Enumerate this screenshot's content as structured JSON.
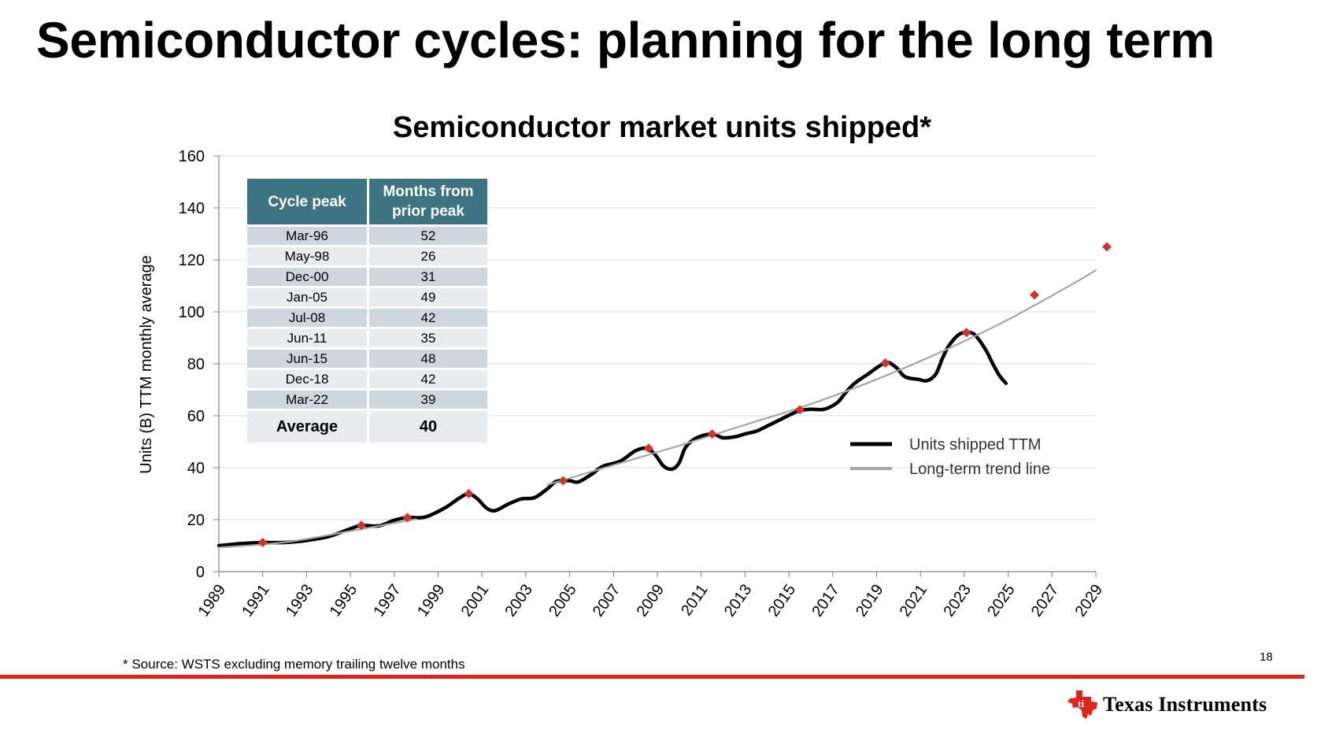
{
  "slide": {
    "title": "Semiconductor cycles: planning for the long term",
    "footnote": "* Source: WSTS excluding memory trailing twelve months",
    "page_number": "18"
  },
  "brand": {
    "company": "Texas Instruments",
    "logo_icon": "texas-instruments-logo-icon",
    "accent_color": "#e2231a"
  },
  "table": {
    "headers": [
      "Cycle peak",
      "Months from prior peak"
    ],
    "rows": [
      {
        "peak": "Mar-96",
        "months": "52"
      },
      {
        "peak": "May-98",
        "months": "26"
      },
      {
        "peak": "Dec-00",
        "months": "31"
      },
      {
        "peak": "Jan-05",
        "months": "49"
      },
      {
        "peak": "Jul-08",
        "months": "42"
      },
      {
        "peak": "Jun-11",
        "months": "35"
      },
      {
        "peak": "Jun-15",
        "months": "48"
      },
      {
        "peak": "Dec-18",
        "months": "42"
      },
      {
        "peak": "Mar-22",
        "months": "39"
      }
    ],
    "average_label": "Average",
    "average_value": "40"
  },
  "chart_data": {
    "type": "line",
    "title": "Semiconductor market units shipped*",
    "xlabel": "",
    "ylabel": "Units (B) TTM monthly average",
    "xlim": [
      1989,
      2029
    ],
    "ylim": [
      0,
      160
    ],
    "yticks": [
      0,
      20,
      40,
      60,
      80,
      100,
      120,
      140,
      160
    ],
    "xticks": [
      1989,
      1991,
      1993,
      1995,
      1997,
      1999,
      2001,
      2003,
      2005,
      2007,
      2009,
      2011,
      2013,
      2015,
      2017,
      2019,
      2021,
      2023,
      2025,
      2027,
      2029
    ],
    "grid": true,
    "legend_position": "right",
    "series": [
      {
        "name": "Units shipped TTM",
        "color": "#000000",
        "points": [
          [
            1989,
            10
          ],
          [
            1990,
            10.8
          ],
          [
            1991,
            11.2
          ],
          [
            1992,
            11.2
          ],
          [
            1993,
            12
          ],
          [
            1994,
            13.5
          ],
          [
            1995,
            16.5
          ],
          [
            1995.5,
            17.8
          ],
          [
            1996.3,
            17.6
          ],
          [
            1997,
            19.8
          ],
          [
            1997.6,
            20.8
          ],
          [
            1998.4,
            21
          ],
          [
            1999.3,
            24.5
          ],
          [
            2000,
            28.5
          ],
          [
            2000.4,
            30
          ],
          [
            2000.8,
            28
          ],
          [
            2001.2,
            24.5
          ],
          [
            2001.6,
            23.5
          ],
          [
            2002.2,
            26
          ],
          [
            2002.8,
            28
          ],
          [
            2003.4,
            28.5
          ],
          [
            2004,
            32
          ],
          [
            2004.4,
            34.8
          ],
          [
            2005,
            35
          ],
          [
            2005.4,
            34.5
          ],
          [
            2006,
            37.5
          ],
          [
            2006.5,
            40.5
          ],
          [
            2007.3,
            42.5
          ],
          [
            2008,
            46.5
          ],
          [
            2008.5,
            47.5
          ],
          [
            2008.9,
            45
          ],
          [
            2009.3,
            40.5
          ],
          [
            2009.7,
            39.5
          ],
          [
            2010,
            42
          ],
          [
            2010.3,
            48
          ],
          [
            2010.8,
            51.5
          ],
          [
            2011.5,
            53
          ],
          [
            2012,
            51.5
          ],
          [
            2012.6,
            52
          ],
          [
            2013,
            53
          ],
          [
            2013.5,
            54
          ],
          [
            2014,
            56
          ],
          [
            2014.6,
            58.5
          ],
          [
            2015.2,
            61
          ],
          [
            2015.5,
            62
          ],
          [
            2016,
            62.5
          ],
          [
            2016.6,
            62.5
          ],
          [
            2017.2,
            65
          ],
          [
            2017.6,
            69
          ],
          [
            2018,
            72.5
          ],
          [
            2018.6,
            76
          ],
          [
            2019.1,
            79
          ],
          [
            2019.5,
            80.5
          ],
          [
            2019.9,
            78.5
          ],
          [
            2020.3,
            75
          ],
          [
            2020.9,
            74
          ],
          [
            2021.3,
            73.5
          ],
          [
            2021.7,
            76
          ],
          [
            2022,
            82
          ],
          [
            2022.3,
            87
          ],
          [
            2022.8,
            91.5
          ],
          [
            2023.3,
            92
          ],
          [
            2023.6,
            90
          ],
          [
            2024,
            85
          ],
          [
            2024.3,
            80
          ],
          [
            2024.6,
            75.5
          ],
          [
            2024.9,
            72.5
          ]
        ]
      },
      {
        "name": "Long-term trend line",
        "color": "#a6a6a6",
        "points": [
          [
            1989,
            9.3
          ],
          [
            1992,
            11.3
          ],
          [
            1995,
            15.6
          ],
          [
            1998,
            20.2
          ],
          [
            2001,
            25.5
          ],
          [
            2004,
            33.5
          ],
          [
            2007,
            41
          ],
          [
            2010,
            48.5
          ],
          [
            2013,
            56.5
          ],
          [
            2016,
            64.5
          ],
          [
            2019,
            74
          ],
          [
            2022,
            84.8
          ],
          [
            2025,
            97
          ],
          [
            2028,
            111
          ],
          [
            2029,
            116
          ]
        ]
      },
      {
        "name": "Cycle peaks",
        "type": "scatter",
        "color": "#d6312a",
        "points": [
          [
            1991,
            11.2
          ],
          [
            1995.5,
            17.8
          ],
          [
            1997.6,
            20.8
          ],
          [
            2000.4,
            30
          ],
          [
            2004.7,
            35
          ],
          [
            2008.6,
            47.5
          ],
          [
            2011.5,
            53
          ],
          [
            2015.5,
            62.3
          ],
          [
            2019.4,
            80.3
          ],
          [
            2023.1,
            92
          ],
          [
            2026.2,
            106.5
          ],
          [
            2029.5,
            125
          ]
        ]
      }
    ]
  }
}
